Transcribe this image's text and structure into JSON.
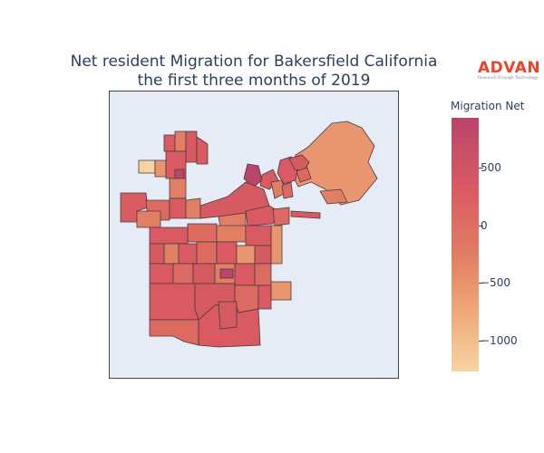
{
  "title_line1": "Net resident Migration for Bakersfield California",
  "title_line2": "the first three months of 2019",
  "logo": {
    "name": "ADVAN",
    "tagline": "Research through Technology"
  },
  "colorbar": {
    "title": "Migration Net",
    "ticks": [
      "500",
      "0",
      "−500",
      "−1000"
    ],
    "colors": [
      "#b9456a",
      "#d95a63",
      "#e17f64",
      "#eda676",
      "#f6d4a2"
    ]
  }
}
